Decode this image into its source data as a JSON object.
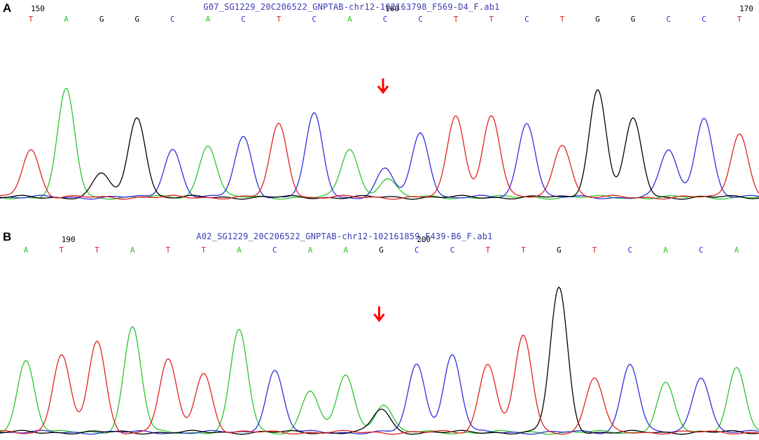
{
  "colors": {
    "A": "#2cc52c",
    "C": "#2e2ee0",
    "G": "#000000",
    "T": "#e02020",
    "marker": "#ff0000"
  },
  "panels": [
    {
      "label": "A",
      "file": "G07_SG1229_20C206522_GNPTAB-chr12-102163798_F569-D4_F.ab1",
      "sequence": [
        "T",
        "A",
        "G",
        "G",
        "C",
        "A",
        "C",
        "T",
        "C",
        "A",
        "C",
        "C",
        "T",
        "T",
        "C",
        "T",
        "G",
        "G",
        "C",
        "C",
        "T"
      ],
      "base_glyphs": [
        "T",
        "A",
        "G",
        "G",
        "C",
        "A",
        "C",
        "T",
        "C",
        "A",
        "C",
        "C",
        "T",
        "T",
        "C",
        "T",
        "G",
        "G",
        "C",
        "C",
        "T"
      ],
      "positions": [
        {
          "label": "150",
          "index": 0
        },
        {
          "label": "160",
          "index": 10
        },
        {
          "label": "170",
          "index": 20
        }
      ],
      "mutation_index": 10,
      "peaks": [
        {
          "base": "T",
          "height": 0.45
        },
        {
          "base": "A",
          "height": 1.0
        },
        {
          "base": "G",
          "height": 0.22
        },
        {
          "base": "G",
          "height": 0.75
        },
        {
          "base": "C",
          "height": 0.45
        },
        {
          "base": "A",
          "height": 0.49
        },
        {
          "base": "C",
          "height": 0.56
        },
        {
          "base": "T",
          "height": 0.68
        },
        {
          "base": "C",
          "height": 0.77
        },
        {
          "base": "A",
          "height": 0.45
        },
        {
          "base": "C",
          "height": 0.26,
          "secondary": {
            "base": "A",
            "height": 0.18
          }
        },
        {
          "base": "C",
          "height": 0.6
        },
        {
          "base": "T",
          "height": 0.76
        },
        {
          "base": "T",
          "height": 0.77
        },
        {
          "base": "C",
          "height": 0.7
        },
        {
          "base": "T",
          "height": 0.5
        },
        {
          "base": "G",
          "height": 1.0
        },
        {
          "base": "G",
          "height": 0.72
        },
        {
          "base": "C",
          "height": 0.44
        },
        {
          "base": "C",
          "height": 0.75
        },
        {
          "base": "T",
          "height": 0.6
        }
      ]
    },
    {
      "label": "B",
      "file": "A02_SG1229_20C206522_GNPTAB-chr12-102161859_F439-B6_F.ab1",
      "sequence": [
        "A",
        "T",
        "T",
        "A",
        "T",
        "T",
        "A",
        "C",
        "A",
        "A",
        "G",
        "C",
        "C",
        "T",
        "T",
        "G",
        "T",
        "C",
        "A",
        "C",
        "A"
      ],
      "base_glyphs": [
        "A",
        "T",
        "T",
        "A",
        "T",
        "T",
        "A",
        "C",
        "A",
        "A",
        "G",
        "C",
        "C",
        "T",
        "T",
        "G",
        "T",
        "C",
        "A",
        "C",
        "A"
      ],
      "positions": [
        {
          "label": "190",
          "index": 1
        },
        {
          "label": "200",
          "index": 11
        }
      ],
      "mutation_index": 10,
      "peaks": [
        {
          "base": "A",
          "height": 0.5
        },
        {
          "base": "T",
          "height": 0.54
        },
        {
          "base": "T",
          "height": 0.63
        },
        {
          "base": "A",
          "height": 0.73
        },
        {
          "base": "T",
          "height": 0.5
        },
        {
          "base": "T",
          "height": 0.41
        },
        {
          "base": "A",
          "height": 0.71
        },
        {
          "base": "C",
          "height": 0.43
        },
        {
          "base": "A",
          "height": 0.29
        },
        {
          "base": "A",
          "height": 0.4
        },
        {
          "base": "G",
          "height": 0.16,
          "secondary": {
            "base": "A",
            "height": 0.2
          }
        },
        {
          "base": "C",
          "height": 0.47
        },
        {
          "base": "C",
          "height": 0.54
        },
        {
          "base": "T",
          "height": 0.48
        },
        {
          "base": "T",
          "height": 0.67
        },
        {
          "base": "G",
          "height": 1.0
        },
        {
          "base": "T",
          "height": 0.38
        },
        {
          "base": "C",
          "height": 0.48
        },
        {
          "base": "A",
          "height": 0.34
        },
        {
          "base": "C",
          "height": 0.39
        },
        {
          "base": "A",
          "height": 0.45
        }
      ]
    }
  ]
}
